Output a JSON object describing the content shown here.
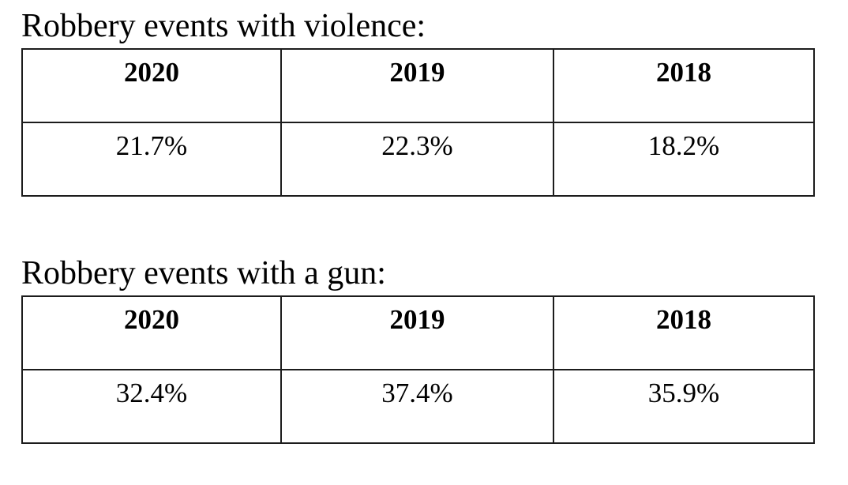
{
  "page": {
    "background": "#ffffff",
    "text_color": "#000000",
    "border_color": "#1c1c1c"
  },
  "tables": [
    {
      "title": "Robbery events with violence:",
      "headers": [
        "2020",
        "2019",
        "2018"
      ],
      "values": [
        "21.7%",
        "22.3%",
        "18.2%"
      ]
    },
    {
      "title": "Robbery events with a gun:",
      "headers": [
        "2020",
        "2019",
        "2018"
      ],
      "values": [
        "32.4%",
        "37.4%",
        "35.9%"
      ]
    }
  ]
}
